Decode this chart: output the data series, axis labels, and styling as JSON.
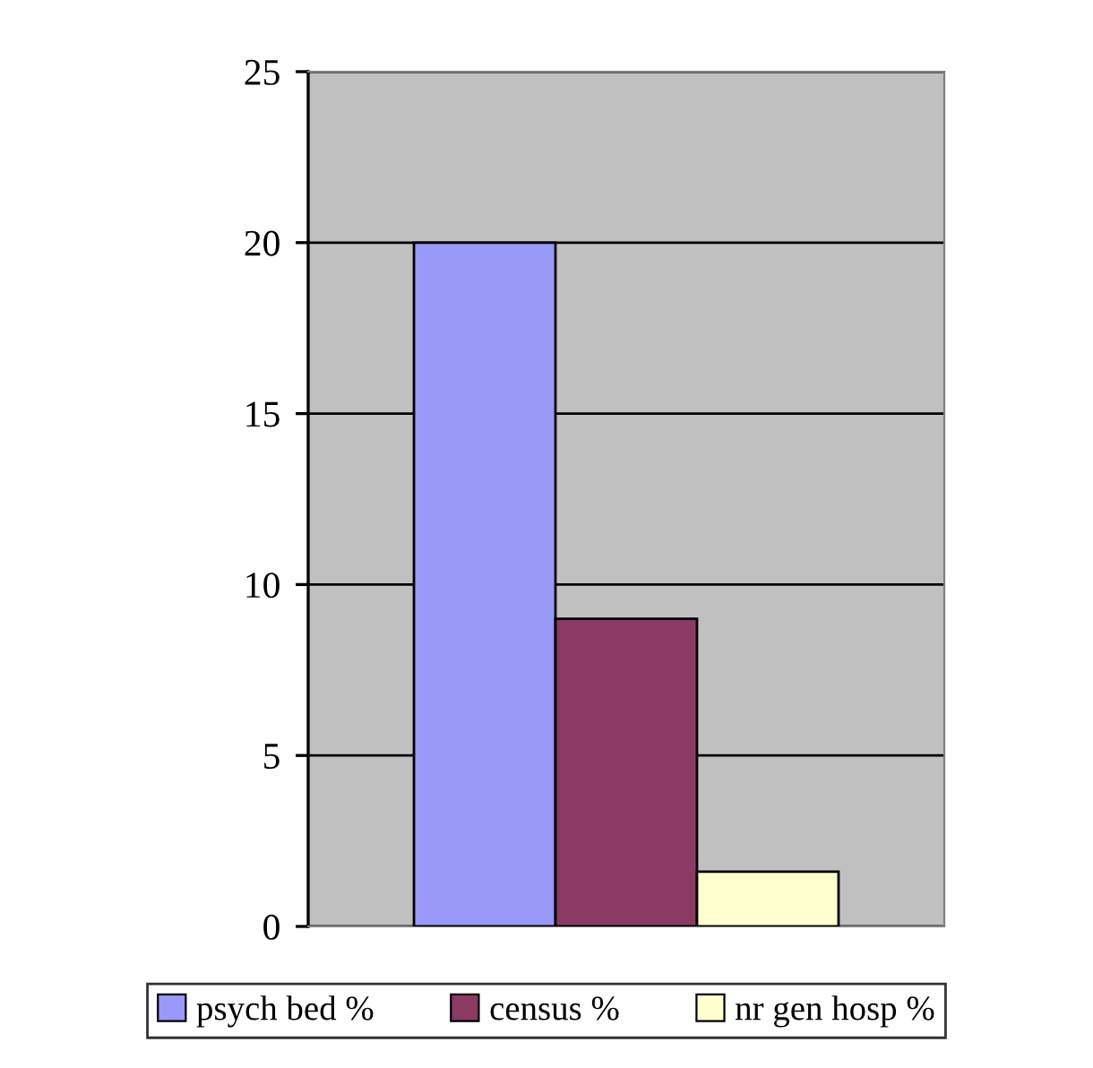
{
  "chart_data": {
    "type": "bar",
    "categories": [
      null
    ],
    "series": [
      {
        "name": "psych bed %",
        "color": "#9999f8",
        "values": [
          20
        ]
      },
      {
        "name": "census %",
        "color": "#8b3a63",
        "values": [
          9
        ]
      },
      {
        "name": "nr gen hosp %",
        "color": "#ffffd0",
        "values": [
          1.6
        ]
      }
    ],
    "ylim": [
      0,
      25
    ],
    "yticks": [
      0,
      5,
      10,
      15,
      20,
      25
    ],
    "grid": "y",
    "legend": "bottom"
  }
}
